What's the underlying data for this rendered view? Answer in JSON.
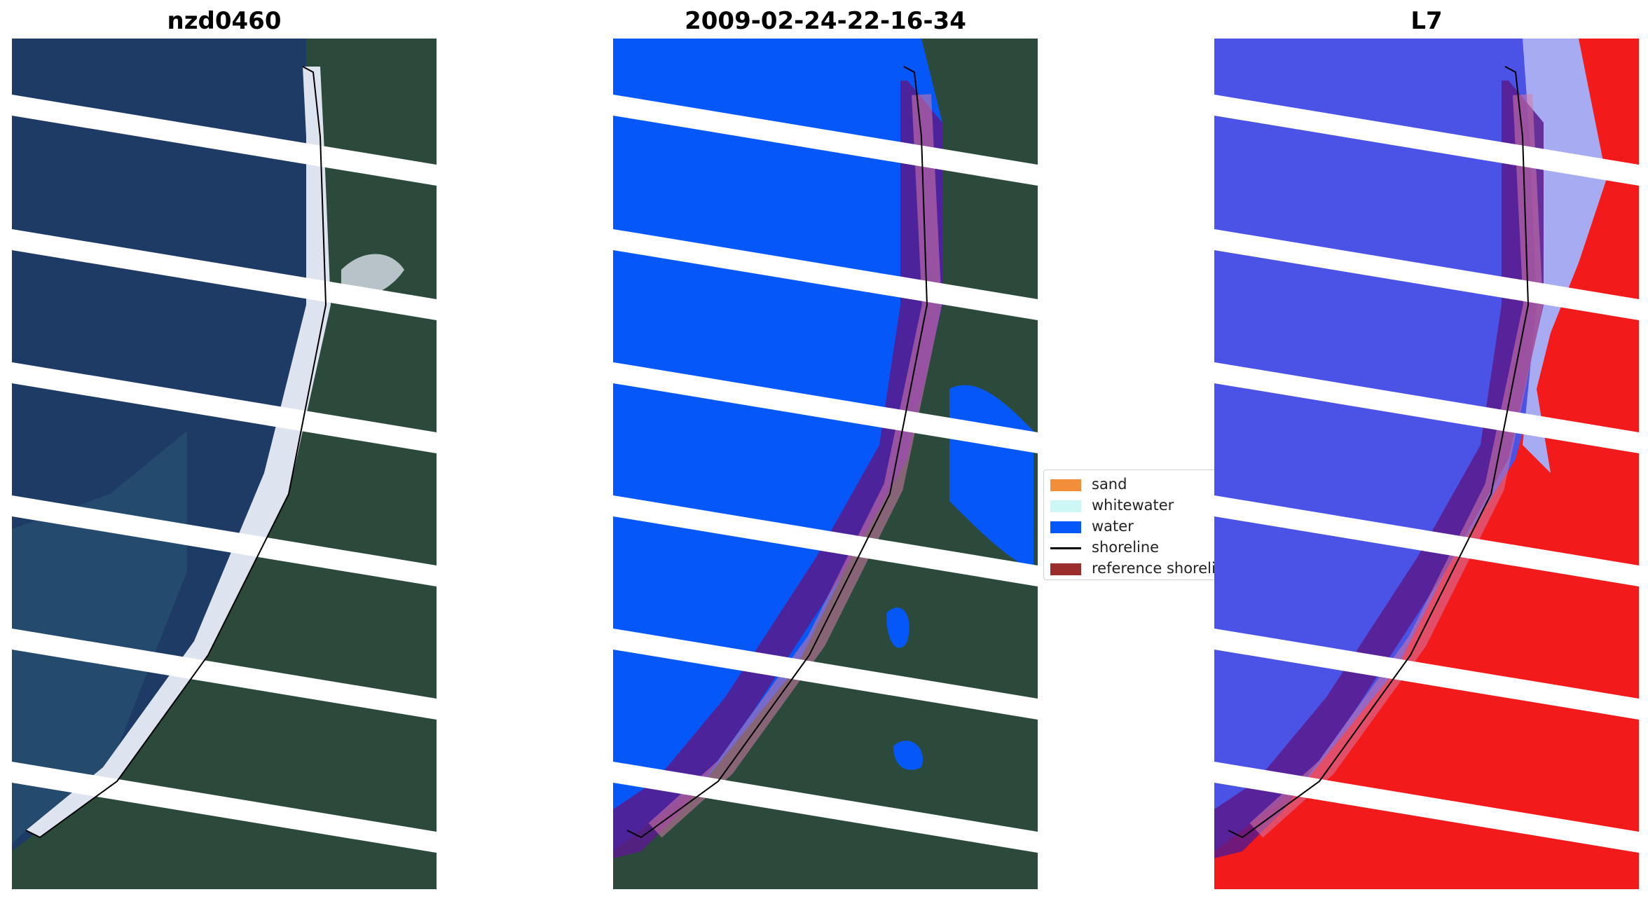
{
  "panels": [
    {
      "title": "nzd0460"
    },
    {
      "title": "2009-02-24-22-16-34"
    },
    {
      "title": "L7"
    }
  ],
  "legend": {
    "items": [
      {
        "label": "sand",
        "color": "#f28e3a",
        "kind": "patch"
      },
      {
        "label": "whitewater",
        "color": "#ccf7f5",
        "kind": "patch"
      },
      {
        "label": "water",
        "color": "#0558f7",
        "kind": "patch"
      },
      {
        "label": "shoreline",
        "color": "#000000",
        "kind": "line"
      },
      {
        "label": "reference shoreline",
        "color": "#9b2d2d",
        "kind": "patch"
      }
    ]
  },
  "colors": {
    "ocean": "#1e3b66",
    "land": "#2c4a3c",
    "beach": "#dde4ef",
    "water_class": "#0558f7",
    "reference_buffer": "#5b1a8c",
    "index_negative": "#4b52e6",
    "index_positive": "#f21a1a",
    "scan_gap": "#ffffff"
  }
}
